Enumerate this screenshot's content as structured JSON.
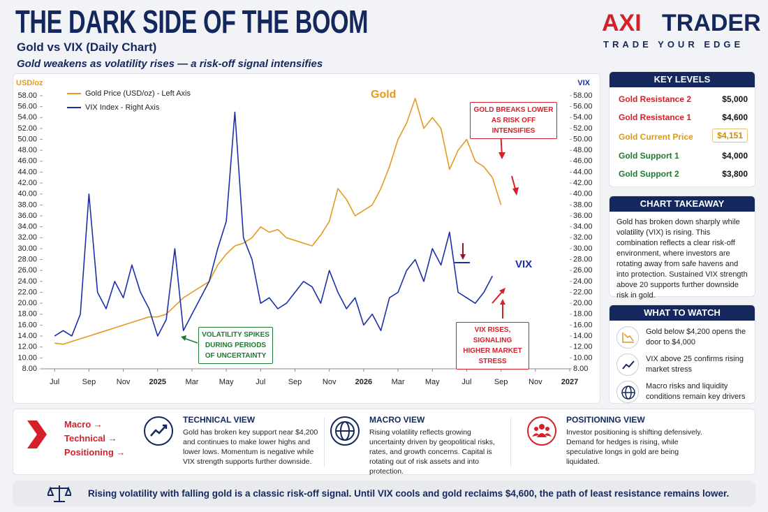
{
  "header": {
    "title": "THE DARK SIDE OF THE BOOM",
    "subtitle": "Gold vs VIX (Daily Chart)",
    "tagline": "Gold weakens as volatility rises — a risk-off signal intensifies",
    "logo": [
      "AXI",
      "TRADER"
    ],
    "logo_tagline": "TRADE YOUR EDGE"
  },
  "chart_data": {
    "type": "line",
    "ylabel": "USD/oz",
    "y2label": "VIX",
    "x": [
      0,
      0.5,
      1,
      1.5,
      2,
      2.5,
      3,
      3.5,
      4,
      4.5,
      5,
      5.5,
      6,
      6.5,
      7,
      7.5,
      8,
      8.5,
      9,
      9.5,
      10,
      10.5,
      11,
      11.5,
      12,
      12.5,
      13,
      13.5,
      14,
      14.5,
      15,
      15.5,
      16,
      16.5,
      17,
      17.5,
      18,
      18.5,
      19,
      19.5,
      20,
      20.5,
      21,
      21.5,
      22,
      22.5,
      23,
      23.5,
      24,
      24.5,
      25,
      25.5,
      26
    ],
    "xlim": [
      -0.7,
      30
    ],
    "xticks": [
      {
        "value": 0,
        "label": "Jul"
      },
      {
        "value": 2,
        "label": "Sep"
      },
      {
        "value": 4,
        "label": "Nov"
      },
      {
        "value": 6,
        "label": "2025"
      },
      {
        "value": 8,
        "label": "Mar"
      },
      {
        "value": 10,
        "label": "May"
      },
      {
        "value": 12,
        "label": "Jul"
      },
      {
        "value": 14,
        "label": "Sep"
      },
      {
        "value": 16,
        "label": "Nov"
      },
      {
        "value": 18,
        "label": "2026"
      },
      {
        "value": 20,
        "label": "Mar"
      },
      {
        "value": 22,
        "label": "May"
      },
      {
        "value": 24,
        "label": "Jul"
      },
      {
        "value": 26,
        "label": "Sep"
      },
      {
        "value": 28,
        "label": "Nov"
      },
      {
        "value": 30,
        "label": "2027"
      }
    ],
    "ylim": [
      8,
      58
    ],
    "y2lim": [
      8,
      58
    ],
    "yticks": [
      {
        "value": 8,
        "label": "8.00"
      },
      {
        "value": 10,
        "label": "10.00"
      },
      {
        "value": 12,
        "label": "12.00"
      },
      {
        "value": 14,
        "label": "14.00"
      },
      {
        "value": 16,
        "label": "16.00"
      },
      {
        "value": 18,
        "label": "18.00"
      },
      {
        "value": 20,
        "label": "20.00"
      },
      {
        "value": 22,
        "label": "22.00"
      },
      {
        "value": 24,
        "label": "24.00"
      },
      {
        "value": 26,
        "label": "26.00"
      },
      {
        "value": 28,
        "label": "28.00"
      },
      {
        "value": 30,
        "label": "30.00"
      },
      {
        "value": 32,
        "label": "32.00"
      },
      {
        "value": 34,
        "label": "34.00"
      },
      {
        "value": 36,
        "label": "36.00"
      },
      {
        "value": 38,
        "label": "38.00"
      },
      {
        "value": 40,
        "label": "40.00"
      },
      {
        "value": 42,
        "label": "42.00"
      },
      {
        "value": 44,
        "label": "44.00"
      },
      {
        "value": 46,
        "label": "46.00"
      },
      {
        "value": 48,
        "label": "48.00"
      },
      {
        "value": 50,
        "label": "50.00"
      },
      {
        "value": 52,
        "label": "52.00"
      },
      {
        "value": 54,
        "label": "54.00"
      },
      {
        "value": 56,
        "label": "56.00"
      },
      {
        "value": 58,
        "label": "58.00"
      }
    ],
    "y2ticks": [
      {
        "value": 8,
        "label": "8.00"
      },
      {
        "value": 10,
        "label": "10.00"
      },
      {
        "value": 12,
        "label": "12.00"
      },
      {
        "value": 14,
        "label": "14.00"
      },
      {
        "value": 16,
        "label": "16.00"
      },
      {
        "value": 18,
        "label": "18.00"
      },
      {
        "value": 20,
        "label": "20.00"
      },
      {
        "value": 22,
        "label": "22.00"
      },
      {
        "value": 24,
        "label": "24.00"
      },
      {
        "value": 26,
        "label": "26.00"
      },
      {
        "value": 28,
        "label": "28.00"
      },
      {
        "value": 30,
        "label": "30.00"
      },
      {
        "value": 32,
        "label": "32.00"
      },
      {
        "value": 34,
        "label": "34.00"
      },
      {
        "value": 36,
        "label": "36.00"
      },
      {
        "value": 38,
        "label": "38.00"
      },
      {
        "value": 40,
        "label": "40.00"
      },
      {
        "value": 42,
        "label": "42.00"
      },
      {
        "value": 44,
        "label": "44.00"
      },
      {
        "value": 46,
        "label": "46.00"
      },
      {
        "value": 48,
        "label": "48.00"
      },
      {
        "value": 50,
        "label": "50.00"
      },
      {
        "value": 52,
        "label": "52.00"
      },
      {
        "value": 54,
        "label": "54.00"
      },
      {
        "value": 56,
        "label": "56.00"
      },
      {
        "value": 58,
        "label": "58.00"
      }
    ],
    "series": [
      {
        "name": "Gold Price (USD/oz) - Left Axis",
        "color": "#e39a1f",
        "values": [
          12.7,
          12.5,
          13,
          13.5,
          14,
          14.5,
          15,
          15.5,
          16,
          16.5,
          17,
          17.5,
          17.5,
          18,
          19.5,
          21,
          22,
          23,
          24,
          27,
          29,
          30.5,
          31,
          32,
          34,
          33,
          33.5,
          32,
          31.5,
          31,
          30.5,
          32.5,
          35,
          41,
          39,
          36,
          37,
          38,
          41,
          45,
          50,
          53,
          57.5,
          52,
          54,
          52,
          44.5,
          48,
          50,
          46,
          45,
          43,
          38
        ]
      },
      {
        "name": "VIX Index - Right Axis",
        "color": "#1a2fa8",
        "axis": "y2",
        "values": [
          14,
          15,
          14,
          18,
          40,
          22,
          19,
          24,
          21,
          27,
          22,
          19,
          14,
          17,
          30,
          15,
          18,
          21,
          24,
          30,
          35,
          55,
          32,
          28,
          20,
          21,
          19,
          20,
          22,
          24,
          23,
          20,
          26,
          22,
          19,
          21,
          16,
          18,
          15,
          21,
          22,
          26,
          28,
          24,
          30,
          27,
          33,
          22,
          21,
          20,
          22,
          25,
          null
        ]
      }
    ],
    "annotations": {
      "gold": "Gold",
      "vix": "VIX",
      "gold_break": "GOLD BREAKS LOWER AS RISK OFF INTENSIFIES",
      "vol_spikes": "VOLATILITY SPIKES DURING PERIODS OF UNCERTAINTY",
      "vix_rises": "VIX RISES, SIGNALING HIGHER MARKET STRESS"
    },
    "grid": false,
    "legend": "upper left"
  },
  "key_levels": {
    "title": "KEY LEVELS",
    "rows": [
      [
        "Gold Resistance 2",
        "$5,000"
      ],
      [
        "Gold Resistance 1",
        "$4,600"
      ],
      [
        "Gold Current Price",
        "$4,151"
      ],
      [
        "Gold Support 1",
        "$4,000"
      ],
      [
        "Gold Support 2",
        "$3,800"
      ]
    ]
  },
  "takeaway": {
    "title": "CHART TAKEAWAY",
    "text": "Gold has broken down sharply while volatility (VIX) is rising. This combination reflects a clear risk-off environment, where investors are rotating away from safe havens and into protection. Sustained VIX strength above 20 supports further downside risk in gold."
  },
  "watch": {
    "title": "WHAT TO WATCH",
    "items": [
      "Gold below $4,200 opens the door to $4,000",
      "VIX above 25 confirms rising market stress",
      "Macro risks and liquidity conditions remain key drivers"
    ]
  },
  "flow": [
    "Macro →",
    "Technical →",
    "Positioning →"
  ],
  "views": [
    {
      "title": "TECHNICAL VIEW",
      "text": "Gold has broken key support near $4,200 and continues to make lower highs and lower lows. Momentum is negative while VIX strength supports further downside."
    },
    {
      "title": "MACRO VIEW",
      "text": "Rising volatility reflects growing uncertainty driven by geopolitical risks, rates, and growth concerns. Capital is rotating out of risk assets and into protection."
    },
    {
      "title": "POSITIONING VIEW",
      "text": "Investor positioning is shifting defensively. Demand for hedges is rising, while speculative longs in gold are being liquidated."
    }
  ],
  "footer": "Rising volatility with falling gold is a classic risk-off signal. Until VIX cools and gold reclaims $4,600, the path of least resistance remains lower."
}
